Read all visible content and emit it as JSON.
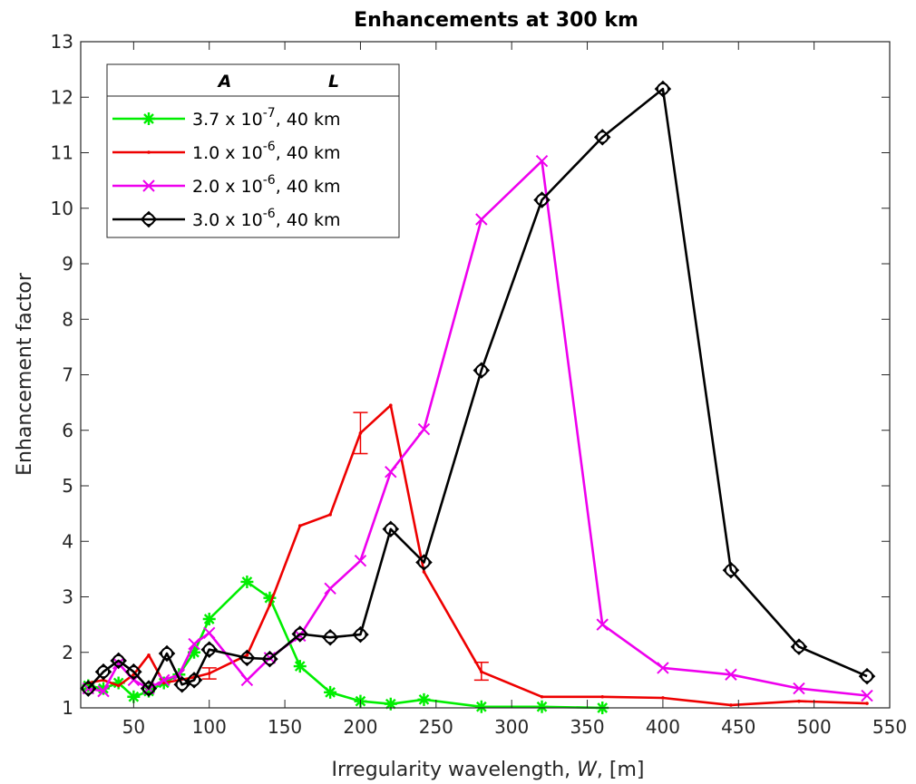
{
  "chart_data": {
    "type": "line",
    "title": "Enhancements at 300 km",
    "xlabel_prefix": "Irregularity wavelength, ",
    "xlabel_var": "W",
    "xlabel_suffix": ", [m]",
    "ylabel": "Enhancement factor",
    "xlim": [
      15,
      550
    ],
    "ylim": [
      1,
      13
    ],
    "xticks": [
      50,
      100,
      150,
      200,
      250,
      300,
      350,
      400,
      450,
      500,
      550
    ],
    "yticks": [
      1,
      2,
      3,
      4,
      5,
      6,
      7,
      8,
      9,
      10,
      11,
      12,
      13
    ],
    "grid": false,
    "legend": {
      "placement": "top-left",
      "header_a": "A",
      "header_l": "L"
    },
    "series": [
      {
        "name": "3.7 x 10⁻⁷,  40 km",
        "legend_mantissa": "3.7 x 10",
        "legend_exp": "-7",
        "legend_suffix": ",  40 km",
        "color": "#00ee00",
        "marker": "asterisk",
        "x": [
          20,
          30,
          40,
          50,
          60,
          70,
          80,
          90,
          100,
          125,
          140,
          160,
          180,
          200,
          220,
          242,
          280,
          320,
          360
        ],
        "y": [
          1.4,
          1.35,
          1.45,
          1.2,
          1.3,
          1.45,
          1.6,
          2.0,
          2.6,
          3.27,
          2.98,
          1.75,
          1.28,
          1.12,
          1.07,
          1.15,
          1.02,
          1.02,
          1.0
        ]
      },
      {
        "name": "1.0 x 10⁻⁶,  40 km",
        "legend_mantissa": "1.0 x 10",
        "legend_exp": "-6",
        "legend_suffix": ",  40 km",
        "color": "#ee0000",
        "marker": "point",
        "x": [
          20,
          30,
          40,
          50,
          60,
          70,
          80,
          90,
          100,
          125,
          140,
          160,
          180,
          200,
          220,
          242,
          280,
          320,
          360,
          400,
          445,
          490,
          535
        ],
        "y": [
          1.45,
          1.5,
          1.4,
          1.6,
          1.95,
          1.45,
          1.5,
          1.55,
          1.62,
          1.95,
          2.85,
          4.28,
          4.48,
          5.95,
          6.45,
          3.45,
          1.65,
          1.2,
          1.2,
          1.18,
          1.05,
          1.12,
          1.08
        ],
        "error_bars": [
          {
            "x": 100,
            "low": 1.52,
            "high": 1.72
          },
          {
            "x": 200,
            "low": 5.58,
            "high": 6.32
          },
          {
            "x": 280,
            "low": 1.5,
            "high": 1.82
          }
        ]
      },
      {
        "name": "2.0 x 10⁻⁶,  40 km",
        "legend_mantissa": "2.0 x 10",
        "legend_exp": "-6",
        "legend_suffix": ",  40 km",
        "color": "#ee00ee",
        "marker": "x",
        "x": [
          20,
          30,
          40,
          50,
          60,
          70,
          80,
          90,
          100,
          125,
          140,
          160,
          180,
          200,
          220,
          242,
          280,
          320,
          360,
          400,
          445,
          490,
          535
        ],
        "y": [
          1.35,
          1.3,
          1.8,
          1.5,
          1.35,
          1.5,
          1.6,
          2.15,
          2.35,
          1.5,
          1.9,
          2.3,
          3.15,
          3.65,
          5.25,
          6.02,
          9.8,
          10.85,
          2.5,
          1.72,
          1.6,
          1.35,
          1.22
        ]
      },
      {
        "name": "3.0 x 10⁻⁶,  40 km",
        "legend_mantissa": "3.0 x 10",
        "legend_exp": "-6",
        "legend_suffix": ",  40 km",
        "color": "#000000",
        "marker": "diamond",
        "x": [
          20,
          30,
          40,
          50,
          60,
          72,
          82,
          90,
          100,
          125,
          140,
          160,
          180,
          200,
          220,
          242,
          280,
          320,
          360,
          400,
          445,
          490,
          535
        ],
        "y": [
          1.35,
          1.65,
          1.85,
          1.65,
          1.35,
          1.98,
          1.42,
          1.5,
          2.05,
          1.9,
          1.88,
          2.33,
          2.27,
          2.32,
          4.22,
          3.62,
          7.08,
          10.15,
          11.28,
          12.15,
          3.48,
          2.1,
          1.57
        ]
      }
    ]
  }
}
